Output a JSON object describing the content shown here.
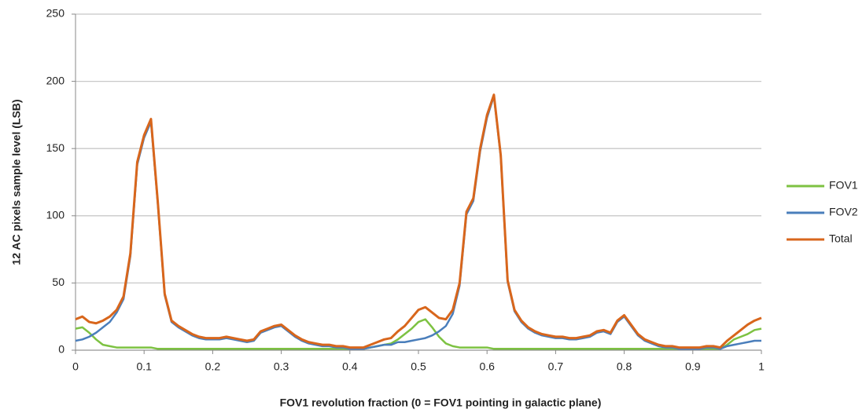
{
  "chart_data": {
    "type": "line",
    "x_label": "FOV1 revolution fraction (0 = FOV1 pointing in galactic plane)",
    "y_label": "12 AC pixels sample level (LSB)",
    "x": [
      0,
      0.01,
      0.02,
      0.03,
      0.04,
      0.05,
      0.06,
      0.07,
      0.08,
      0.09,
      0.1,
      0.11,
      0.12,
      0.13,
      0.14,
      0.15,
      0.16,
      0.17,
      0.18,
      0.19,
      0.2,
      0.21,
      0.22,
      0.23,
      0.24,
      0.25,
      0.26,
      0.27,
      0.28,
      0.29,
      0.3,
      0.31,
      0.32,
      0.33,
      0.34,
      0.35,
      0.36,
      0.37,
      0.38,
      0.39,
      0.4,
      0.41,
      0.42,
      0.43,
      0.44,
      0.45,
      0.46,
      0.47,
      0.48,
      0.49,
      0.5,
      0.51,
      0.52,
      0.53,
      0.54,
      0.55,
      0.56,
      0.57,
      0.58,
      0.59,
      0.6,
      0.61,
      0.62,
      0.63,
      0.64,
      0.65,
      0.66,
      0.67,
      0.68,
      0.69,
      0.7,
      0.71,
      0.72,
      0.73,
      0.74,
      0.75,
      0.76,
      0.77,
      0.78,
      0.79,
      0.8,
      0.81,
      0.82,
      0.83,
      0.84,
      0.85,
      0.86,
      0.87,
      0.88,
      0.89,
      0.9,
      0.91,
      0.92,
      0.93,
      0.94,
      0.95,
      0.96,
      0.97,
      0.98,
      0.99,
      1
    ],
    "series": [
      {
        "name": "FOV1",
        "color": "#7dc242",
        "values": [
          16,
          17,
          13,
          8,
          4,
          3,
          2,
          2,
          2,
          2,
          2,
          2,
          1,
          1,
          1,
          1,
          1,
          1,
          1,
          1,
          1,
          1,
          1,
          1,
          1,
          1,
          1,
          1,
          1,
          1,
          1,
          1,
          1,
          1,
          1,
          1,
          1,
          1,
          1,
          1,
          1,
          1,
          1,
          2,
          3,
          4,
          5,
          8,
          12,
          16,
          21,
          23,
          17,
          10,
          5,
          3,
          2,
          2,
          2,
          2,
          2,
          1,
          1,
          1,
          1,
          1,
          1,
          1,
          1,
          1,
          1,
          1,
          1,
          1,
          1,
          1,
          1,
          1,
          1,
          1,
          1,
          1,
          1,
          1,
          1,
          1,
          1,
          1,
          1,
          1,
          1,
          1,
          1,
          1,
          1,
          4,
          8,
          10,
          12,
          15,
          16
        ]
      },
      {
        "name": "FOV2",
        "color": "#4a7ebb",
        "values": [
          7,
          8,
          10,
          13,
          17,
          21,
          28,
          38,
          70,
          138,
          158,
          170,
          109,
          41,
          21,
          17,
          14,
          11,
          9,
          8,
          8,
          8,
          9,
          8,
          7,
          6,
          7,
          13,
          15,
          17,
          18,
          14,
          10,
          7,
          5,
          4,
          3,
          3,
          2,
          2,
          1,
          1,
          1,
          2,
          3,
          4,
          4,
          6,
          6,
          7,
          8,
          9,
          11,
          14,
          18,
          27,
          48,
          101,
          111,
          148,
          173,
          189,
          144,
          51,
          29,
          21,
          16,
          13,
          11,
          10,
          9,
          9,
          8,
          8,
          9,
          10,
          13,
          14,
          12,
          21,
          25,
          18,
          11,
          7,
          5,
          3,
          2,
          2,
          1,
          1,
          1,
          1,
          2,
          2,
          1,
          3,
          4,
          5,
          6,
          7,
          7
        ]
      },
      {
        "name": "Total",
        "color": "#d8661c",
        "values": [
          23,
          25,
          21,
          20,
          22,
          25,
          30,
          40,
          72,
          140,
          160,
          172,
          110,
          42,
          22,
          18,
          15,
          12,
          10,
          9,
          9,
          9,
          10,
          9,
          8,
          7,
          8,
          14,
          16,
          18,
          19,
          15,
          11,
          8,
          6,
          5,
          4,
          4,
          3,
          3,
          2,
          2,
          2,
          4,
          6,
          8,
          9,
          14,
          18,
          24,
          30,
          32,
          28,
          24,
          23,
          30,
          50,
          103,
          113,
          150,
          175,
          190,
          145,
          52,
          30,
          22,
          17,
          14,
          12,
          11,
          10,
          10,
          9,
          9,
          10,
          11,
          14,
          15,
          13,
          22,
          26,
          19,
          12,
          8,
          6,
          4,
          3,
          3,
          2,
          2,
          2,
          2,
          3,
          3,
          2,
          7,
          11,
          15,
          19,
          22,
          24
        ]
      }
    ],
    "xlim": [
      0,
      1
    ],
    "xticks": [
      0,
      0.1,
      0.2,
      0.3,
      0.4,
      0.5,
      0.6,
      0.7,
      0.8,
      0.9,
      1
    ],
    "ylim": [
      0,
      250
    ],
    "yticks": [
      0,
      50,
      100,
      150,
      200,
      250
    ],
    "grid": true,
    "legend": "right"
  }
}
